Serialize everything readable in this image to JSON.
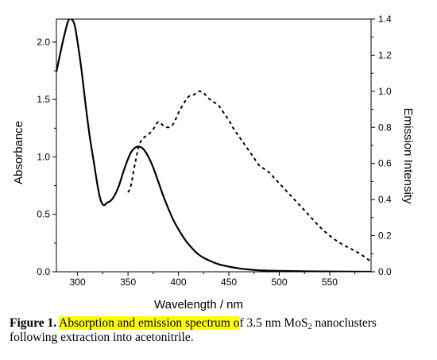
{
  "chart_data": {
    "type": "line",
    "xlabel": "Wavelength / nm",
    "ylabel_left": "Absorbance",
    "ylabel_right": "Emission Intensity",
    "xlim": [
      279,
      591
    ],
    "ylim_left": [
      0,
      2.2
    ],
    "ylim_right": [
      0,
      1.4
    ],
    "x_ticks": [
      300,
      350,
      400,
      450,
      500,
      550
    ],
    "y_left_ticks": [
      "0.0",
      "0.5",
      "1.0",
      "1.5",
      "2.0"
    ],
    "y_right_ticks": [
      "0.0",
      "0.2",
      "0.4",
      "0.6",
      "0.8",
      "1.0",
      "1.2",
      "1.4"
    ],
    "grid": false,
    "series": [
      {
        "axis": "left",
        "style": "solid",
        "x": [
          279,
          284,
          288,
          291,
          294,
          297,
          300,
          304,
          308,
          312,
          316,
          320,
          323,
          326,
          329,
          333,
          337,
          341,
          345,
          349,
          353,
          357,
          361,
          365,
          369,
          373,
          377,
          381,
          385,
          390,
          395,
          400,
          405,
          410,
          420,
          430,
          440,
          450,
          460,
          470,
          480,
          490,
          500,
          520,
          540,
          560,
          591
        ],
        "y": [
          1.74,
          1.95,
          2.1,
          2.19,
          2.2,
          2.15,
          2.0,
          1.75,
          1.45,
          1.18,
          0.96,
          0.74,
          0.62,
          0.58,
          0.6,
          0.62,
          0.67,
          0.75,
          0.86,
          0.96,
          1.04,
          1.08,
          1.09,
          1.07,
          1.02,
          0.95,
          0.86,
          0.76,
          0.66,
          0.55,
          0.45,
          0.37,
          0.3,
          0.24,
          0.15,
          0.1,
          0.065,
          0.045,
          0.03,
          0.02,
          0.013,
          0.01,
          0.008,
          0.005,
          0.003,
          0.002,
          0.0
        ]
      },
      {
        "axis": "right",
        "style": "dashed",
        "x": [
          350,
          353,
          357,
          361,
          365,
          370,
          375,
          380,
          385,
          390,
          395,
          400,
          405,
          410,
          415,
          420,
          425,
          430,
          435,
          440,
          445,
          450,
          455,
          460,
          465,
          470,
          475,
          480,
          485,
          490,
          495,
          500,
          510,
          520,
          530,
          540,
          550,
          560,
          570,
          580,
          590
        ],
        "y": [
          0.44,
          0.48,
          0.6,
          0.7,
          0.74,
          0.76,
          0.79,
          0.83,
          0.81,
          0.8,
          0.82,
          0.88,
          0.93,
          0.97,
          0.98,
          1.0,
          0.99,
          0.96,
          0.94,
          0.92,
          0.88,
          0.84,
          0.79,
          0.75,
          0.71,
          0.67,
          0.63,
          0.59,
          0.57,
          0.55,
          0.52,
          0.49,
          0.43,
          0.37,
          0.31,
          0.25,
          0.2,
          0.16,
          0.13,
          0.1,
          0.06
        ]
      }
    ]
  },
  "caption": {
    "label": "Figure 1.",
    "highlight": "Absorption and emission spectrum o",
    "rest_before_sub": "f 3.5 nm MoS",
    "subscript": "2",
    "rest_after_sub": " nanoclusters following extraction into acetonitrile."
  },
  "colors": {
    "highlight": "#ffff00",
    "line": "#000000"
  }
}
